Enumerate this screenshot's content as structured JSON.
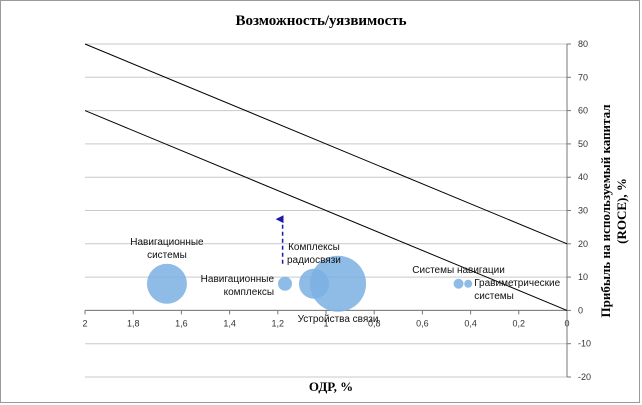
{
  "chart_data": {
    "type": "scatter",
    "title": "Возможность/уязвимость",
    "xlabel": "ОДР, %",
    "ylabel": "Прибыль на используемый капитал\n(ROCE), %",
    "xlim": [
      2,
      0
    ],
    "ylim": [
      -20,
      80
    ],
    "x_reversed": true,
    "y_axis_position": "right",
    "grid": true,
    "x_ticks": [
      "2",
      "1,8",
      "1,6",
      "1,4",
      "1,2",
      "1",
      "0,8",
      "0,6",
      "0,4",
      "0,2",
      "0"
    ],
    "y_ticks": [
      "-20",
      "-10",
      "0",
      "10",
      "20",
      "30",
      "40",
      "50",
      "60",
      "70",
      "80"
    ],
    "lines": [
      {
        "from": [
          2,
          80
        ],
        "to": [
          0,
          20
        ]
      },
      {
        "from": [
          2,
          60
        ],
        "to": [
          0,
          0
        ]
      }
    ],
    "bubbles": [
      {
        "label": "Навигационные\nсистемы",
        "x": 1.66,
        "y": 8,
        "r": 20,
        "label_pos": "above"
      },
      {
        "label": "Навигационные\nкомплексы",
        "x": 1.17,
        "y": 8,
        "r": 7,
        "label_pos": "left"
      },
      {
        "label": "Комплексы\nрадиосвязи",
        "x": 1.05,
        "y": 8,
        "r": 15,
        "label_pos": "above"
      },
      {
        "label": "Устройства связи",
        "x": 0.95,
        "y": 8,
        "r": 28,
        "label_pos": "below"
      },
      {
        "label": "Системы навигации",
        "x": 0.45,
        "y": 8,
        "r": 5,
        "label_pos": "above"
      },
      {
        "label": "Гравиметрические\nсистемы",
        "x": 0.41,
        "y": 8,
        "r": 4,
        "label_pos": "right"
      }
    ],
    "arrow": {
      "x": 1.18,
      "from_y": 14,
      "to_y": 28,
      "style": "dashed",
      "color": "#1a1aa6"
    },
    "colors": {
      "bubble": "#7bb0e3",
      "line": "#000000",
      "grid": "#c9c9c9"
    }
  }
}
